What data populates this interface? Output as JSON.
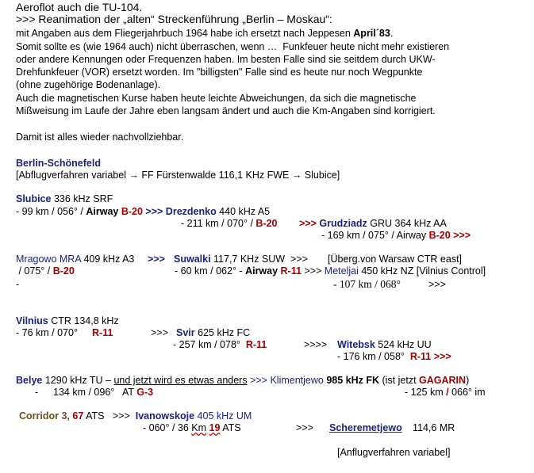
{
  "lines": [
    [
      "Aeroflot auch die TU-104."
    ],
    [
      ">>> Reanimation der „alten“ Streckenführung „Berlin – Moskau“:"
    ],
    [
      "mit Angaben aus dem Fliegerjahrbuch 1964 habe ich ersetzt nach Jeppesen ",
      "April´83",
      "."
    ],
    [
      "Somit sollte es (wie 1964 auch) nicht überraschen, wenn …  Funkfeuer heute nicht mehr existieren"
    ],
    [
      "oder andere Kennungen oder Frequenzen haben. Im besten Falle sind sie seitdem durch UKW-"
    ],
    [
      "Drehfunkfeuer (VOR) ersetzt worden. Im \"billigsten\" Falle sind es heute nur noch Wegpunkte"
    ],
    [
      "(ohne zugehörige Bodenanlage)."
    ],
    [
      "Auch die magnetischen Kurse haben heute leichte Abweichungen, da sich die magnetische"
    ],
    [
      "Mißweisung im Laufe der Jahre eben langsam ändert und auch die Km-Angaben sind korrigiert."
    ],
    [
      "Damit ist alles wieder nachvollziehbar."
    ],
    [
      "Berlin-Schönefeld"
    ],
    [
      "[Abflugverfahren variabel → FF Fürstenwalde 116,1 KHz FWE → Slubice]"
    ],
    [
      "Slubice",
      " 336 kHz SRF"
    ],
    [
      "- 99 km / 056° / ",
      "Airway ",
      "B-20",
      " >>> ",
      "Drezdenko",
      " 440 kHz A5"
    ],
    [
      "- 211 km / 070° / ",
      "B-20",
      ">>> ",
      "Grudziadz",
      " GRU 364 kHz AA"
    ],
    [
      "- 169 km / 075° / Airway ",
      "B-20 >>>"
    ],
    [
      "Mragowo MRA",
      " 409 kHz A3 ",
      ">>>",
      "Suwalki",
      " 117,7 KHz SUW  >>>",
      "[Überg.von Warsaw CTR east]"
    ],
    [
      " / 075° / ",
      "B-20",
      "- 60 km / 062° - ",
      "Airway ",
      "R-11",
      " >>> ",
      "Meteljai",
      " 450 kHz NZ [Vilnius Control]"
    ],
    [
      "-",
      "- 107 km / 068°",
      ">>>"
    ],
    [
      "Vilnius",
      " CTR 134,8 kHz"
    ],
    [
      "- 76 km / 070°",
      "R-11",
      ">>>",
      "Svir",
      " 625 kHz FC"
    ],
    [
      "- 257 km / 078°  ",
      "R-11",
      ">>>>",
      "Witebsk",
      " 524 kHz UU"
    ],
    [
      "- 176 km / 058°  ",
      "R-11 >>>"
    ],
    [
      "Belye",
      " 1290 kHz TU – ",
      "und jetzt wird es etwas anders",
      " >>> ",
      "Klimentjewo",
      " 985 kHz FK",
      " (ist jetzt ",
      "GAGARIN",
      ")"
    ],
    [
      "-",
      "134 km / 096°   AT ",
      "G-3",
      "- 125 km ",
      "/",
      " 066° im"
    ],
    [
      "Corridor 3, ",
      "67",
      " ATS   >>>  ",
      "Ivanowskoje",
      " 405 kHz UM"
    ],
    [
      "- 060° / 36 ",
      "Km",
      " ",
      "19",
      " ATS",
      ">>>",
      "Scheremetjewo",
      "114,6 MR"
    ],
    [
      "[Anflugverfahren variabel]"
    ]
  ]
}
